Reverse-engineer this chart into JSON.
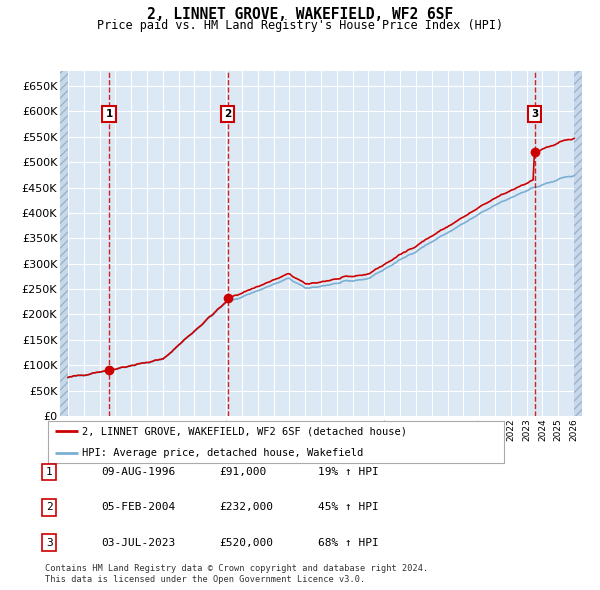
{
  "title": "2, LINNET GROVE, WAKEFIELD, WF2 6SF",
  "subtitle": "Price paid vs. HM Land Registry's House Price Index (HPI)",
  "legend_line1": "2, LINNET GROVE, WAKEFIELD, WF2 6SF (detached house)",
  "legend_line2": "HPI: Average price, detached house, Wakefield",
  "sale1_date": "09-AUG-1996",
  "sale1_price": 91000,
  "sale1_hpi": "19% ↑ HPI",
  "sale1_year": 1996.6,
  "sale2_date": "05-FEB-2004",
  "sale2_price": 232000,
  "sale2_hpi": "45% ↑ HPI",
  "sale2_year": 2004.1,
  "sale3_date": "03-JUL-2023",
  "sale3_price": 520000,
  "sale3_hpi": "68% ↑ HPI",
  "sale3_year": 2023.5,
  "footnote1": "Contains HM Land Registry data © Crown copyright and database right 2024.",
  "footnote2": "This data is licensed under the Open Government Licence v3.0.",
  "hpi_color": "#7bafd4",
  "price_color": "#cc0000",
  "sale_dot_color": "#cc0000",
  "vline_color": "#cc0000",
  "bg_color": "#dce9f5",
  "grid_color": "#ffffff",
  "ylim_max": 680000,
  "xlim_min": 1993.5,
  "xlim_max": 2026.5
}
